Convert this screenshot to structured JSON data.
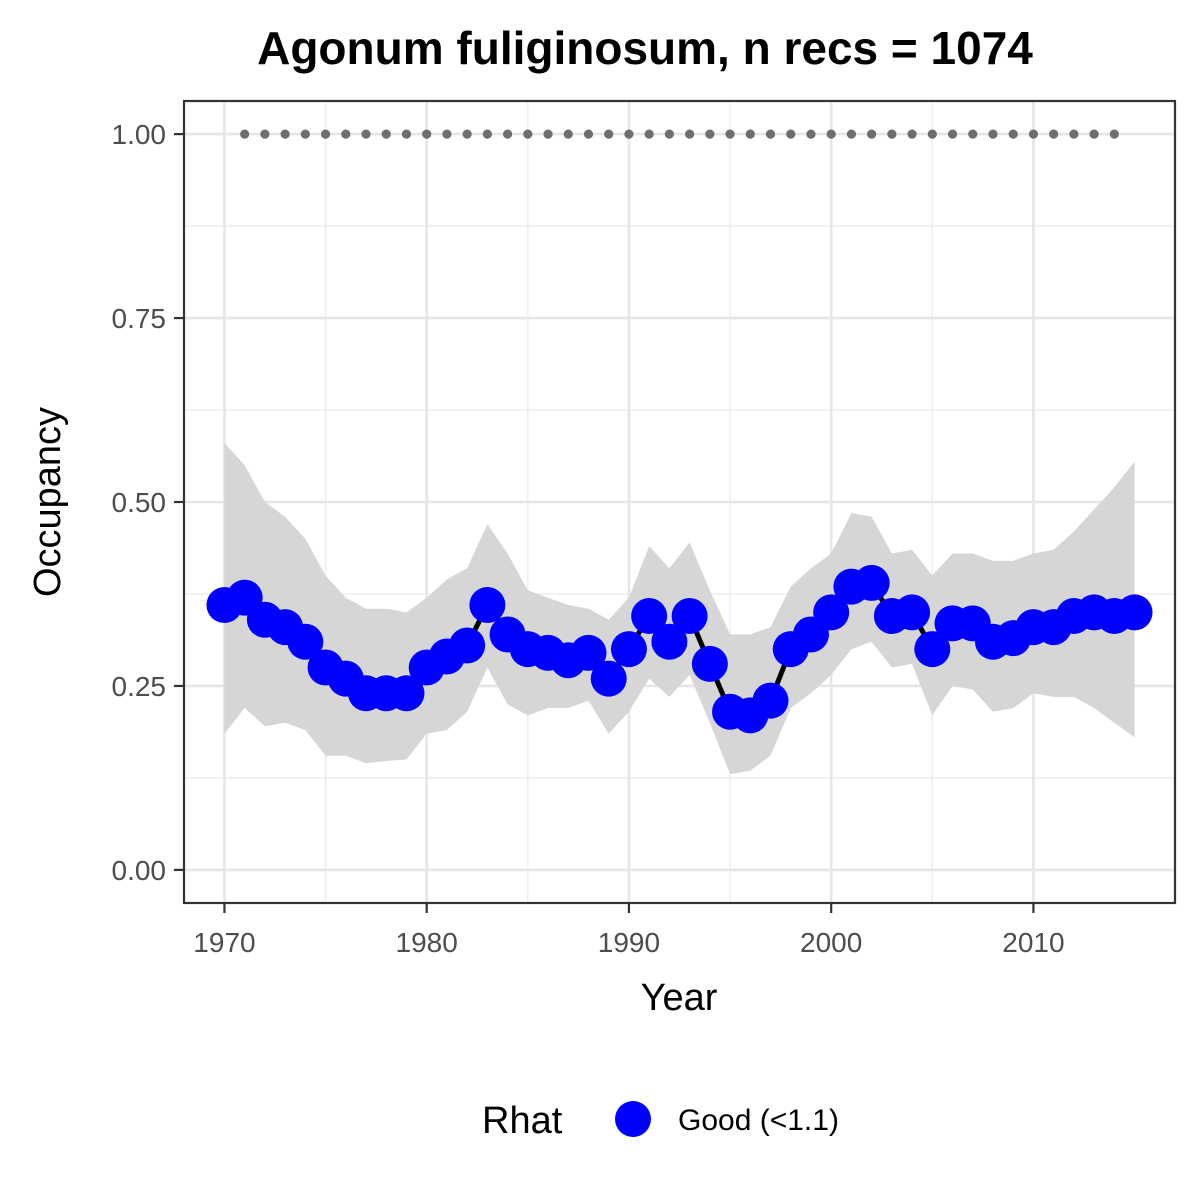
{
  "chart_data": {
    "type": "line",
    "title": "Agonum fuliginosum, n recs = 1074",
    "xlabel": "Year",
    "ylabel": "Occupancy",
    "xlim": [
      1968,
      2017
    ],
    "ylim": [
      -0.045,
      1.045
    ],
    "x_ticks": [
      1970,
      1980,
      1990,
      2000,
      2010
    ],
    "x_tick_labels": [
      "1970",
      "1980",
      "1990",
      "2000",
      "2010"
    ],
    "y_ticks": [
      0.0,
      0.25,
      0.5,
      0.75,
      1.0
    ],
    "y_tick_labels": [
      "0.00",
      "0.25",
      "0.50",
      "0.75",
      "1.00"
    ],
    "grid": true,
    "legend": {
      "position": "bottom",
      "title": "Rhat",
      "entries": [
        {
          "label": "Good (<1.1)",
          "color": "#0000ff"
        }
      ]
    },
    "colors": {
      "points": "#0000ff",
      "line": "#000000",
      "ribbon": "#d6d6d6",
      "reference_dots": "#6e6e6e"
    },
    "series": [
      {
        "x": [
          1970,
          1971,
          1972,
          1973,
          1974,
          1975,
          1976,
          1977,
          1978,
          1979,
          1980,
          1981,
          1982,
          1983,
          1984,
          1985,
          1986,
          1987,
          1988,
          1989,
          1990,
          1991,
          1992,
          1993,
          1994,
          1995,
          1996,
          1997,
          1998,
          1999,
          2000,
          2001,
          2002,
          2003,
          2004,
          2005,
          2006,
          2007,
          2008,
          2009,
          2010,
          2011,
          2012,
          2013,
          2014,
          2015
        ],
        "values": [
          0.36,
          0.37,
          0.34,
          0.33,
          0.31,
          0.275,
          0.26,
          0.24,
          0.24,
          0.24,
          0.275,
          0.29,
          0.305,
          0.36,
          0.32,
          0.3,
          0.295,
          0.285,
          0.295,
          0.26,
          0.3,
          0.345,
          0.31,
          0.345,
          0.28,
          0.215,
          0.21,
          0.23,
          0.3,
          0.32,
          0.35,
          0.385,
          0.39,
          0.345,
          0.35,
          0.3,
          0.335,
          0.335,
          0.31,
          0.315,
          0.33,
          0.33,
          0.345,
          0.35,
          0.345,
          0.35
        ]
      }
    ],
    "ribbon": {
      "x": [
        1970,
        1971,
        1972,
        1973,
        1974,
        1975,
        1976,
        1977,
        1978,
        1979,
        1980,
        1981,
        1982,
        1983,
        1984,
        1985,
        1986,
        1987,
        1988,
        1989,
        1990,
        1991,
        1992,
        1993,
        1994,
        1995,
        1996,
        1997,
        1998,
        1999,
        2000,
        2001,
        2002,
        2003,
        2004,
        2005,
        2006,
        2007,
        2008,
        2009,
        2010,
        2011,
        2012,
        2013,
        2014,
        2015
      ],
      "upper": [
        0.58,
        0.55,
        0.5,
        0.48,
        0.45,
        0.4,
        0.37,
        0.355,
        0.355,
        0.35,
        0.37,
        0.395,
        0.41,
        0.47,
        0.43,
        0.38,
        0.37,
        0.36,
        0.355,
        0.34,
        0.37,
        0.44,
        0.41,
        0.445,
        0.38,
        0.32,
        0.32,
        0.33,
        0.385,
        0.41,
        0.43,
        0.485,
        0.48,
        0.43,
        0.435,
        0.4,
        0.43,
        0.43,
        0.42,
        0.42,
        0.43,
        0.435,
        0.46,
        0.49,
        0.52,
        0.555
      ],
      "lower": [
        0.185,
        0.22,
        0.195,
        0.2,
        0.19,
        0.155,
        0.155,
        0.145,
        0.148,
        0.15,
        0.185,
        0.19,
        0.215,
        0.275,
        0.225,
        0.21,
        0.22,
        0.22,
        0.23,
        0.185,
        0.215,
        0.26,
        0.235,
        0.265,
        0.2,
        0.13,
        0.135,
        0.155,
        0.22,
        0.24,
        0.265,
        0.3,
        0.31,
        0.275,
        0.28,
        0.21,
        0.25,
        0.245,
        0.215,
        0.22,
        0.24,
        0.235,
        0.235,
        0.22,
        0.2,
        0.18
      ]
    },
    "reference": {
      "x": [
        1971,
        1972,
        1973,
        1974,
        1975,
        1976,
        1977,
        1978,
        1979,
        1980,
        1981,
        1982,
        1983,
        1984,
        1985,
        1986,
        1987,
        1988,
        1989,
        1990,
        1991,
        1992,
        1993,
        1994,
        1995,
        1996,
        1997,
        1998,
        1999,
        2000,
        2001,
        2002,
        2003,
        2004,
        2005,
        2006,
        2007,
        2008,
        2009,
        2010,
        2011,
        2012,
        2013,
        2014
      ],
      "value": 1.0
    }
  }
}
